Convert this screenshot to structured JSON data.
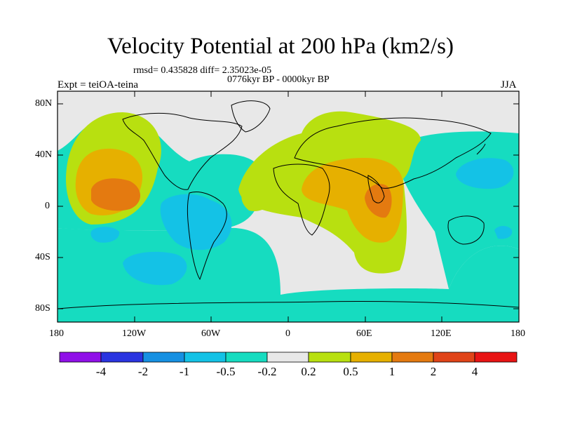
{
  "title": "Velocity Potential at 200 hPa (km2/s)",
  "stats": "rmsd= 0.435828 diff= 2.35023e-05",
  "left_label": "Expt = teiOA-teina",
  "center_label": "0776kyr BP - 0000kyr BP",
  "right_label": "JJA",
  "lat_ticks": [
    "80N",
    "40N",
    "0",
    "40S",
    "80S"
  ],
  "lon_ticks": [
    "180",
    "120W",
    "60W",
    "0",
    "60E",
    "120E",
    "180"
  ],
  "colorbar": {
    "labels": [
      "-4",
      "-2",
      "-1",
      "-0.5",
      "-0.2",
      "0.2",
      "0.5",
      "1",
      "2",
      "4"
    ],
    "colors": [
      "#9010e8",
      "#2a34e0",
      "#1690e2",
      "#14c2e6",
      "#16dcc0",
      "#e8e8e8",
      "#b8e010",
      "#e6b000",
      "#e47a10",
      "#e04418",
      "#e81414"
    ]
  },
  "chart_data": {
    "type": "heatmap",
    "variable": "Velocity Potential at 200 hPa",
    "units": "km2/s",
    "season": "JJA",
    "experiment": "teiOA-teina",
    "period": "0776kyr BP - 0000kyr BP",
    "rmsd": 0.435828,
    "diff": 2.35023e-05,
    "contour_levels": [
      -4,
      -2,
      -1,
      -0.5,
      -0.2,
      0.2,
      0.5,
      1,
      2,
      4
    ],
    "lon_range": [
      -180,
      180
    ],
    "lat_range": [
      -90,
      90
    ],
    "regions": [
      {
        "name": "eastern North Pacific maximum",
        "lon": -125,
        "lat": 12,
        "level": 2
      },
      {
        "name": "South Asia / Indian Ocean maximum",
        "lon": 78,
        "lat": 6,
        "level": 2
      },
      {
        "name": "northwest Pacific minimum",
        "lon": 150,
        "lat": 22,
        "level": -0.5
      },
      {
        "name": "South America minimum",
        "lon": -60,
        "lat": -15,
        "level": -0.5
      },
      {
        "name": "southern oceans band",
        "lon": 0,
        "lat": -65,
        "level": -0.2
      }
    ]
  }
}
